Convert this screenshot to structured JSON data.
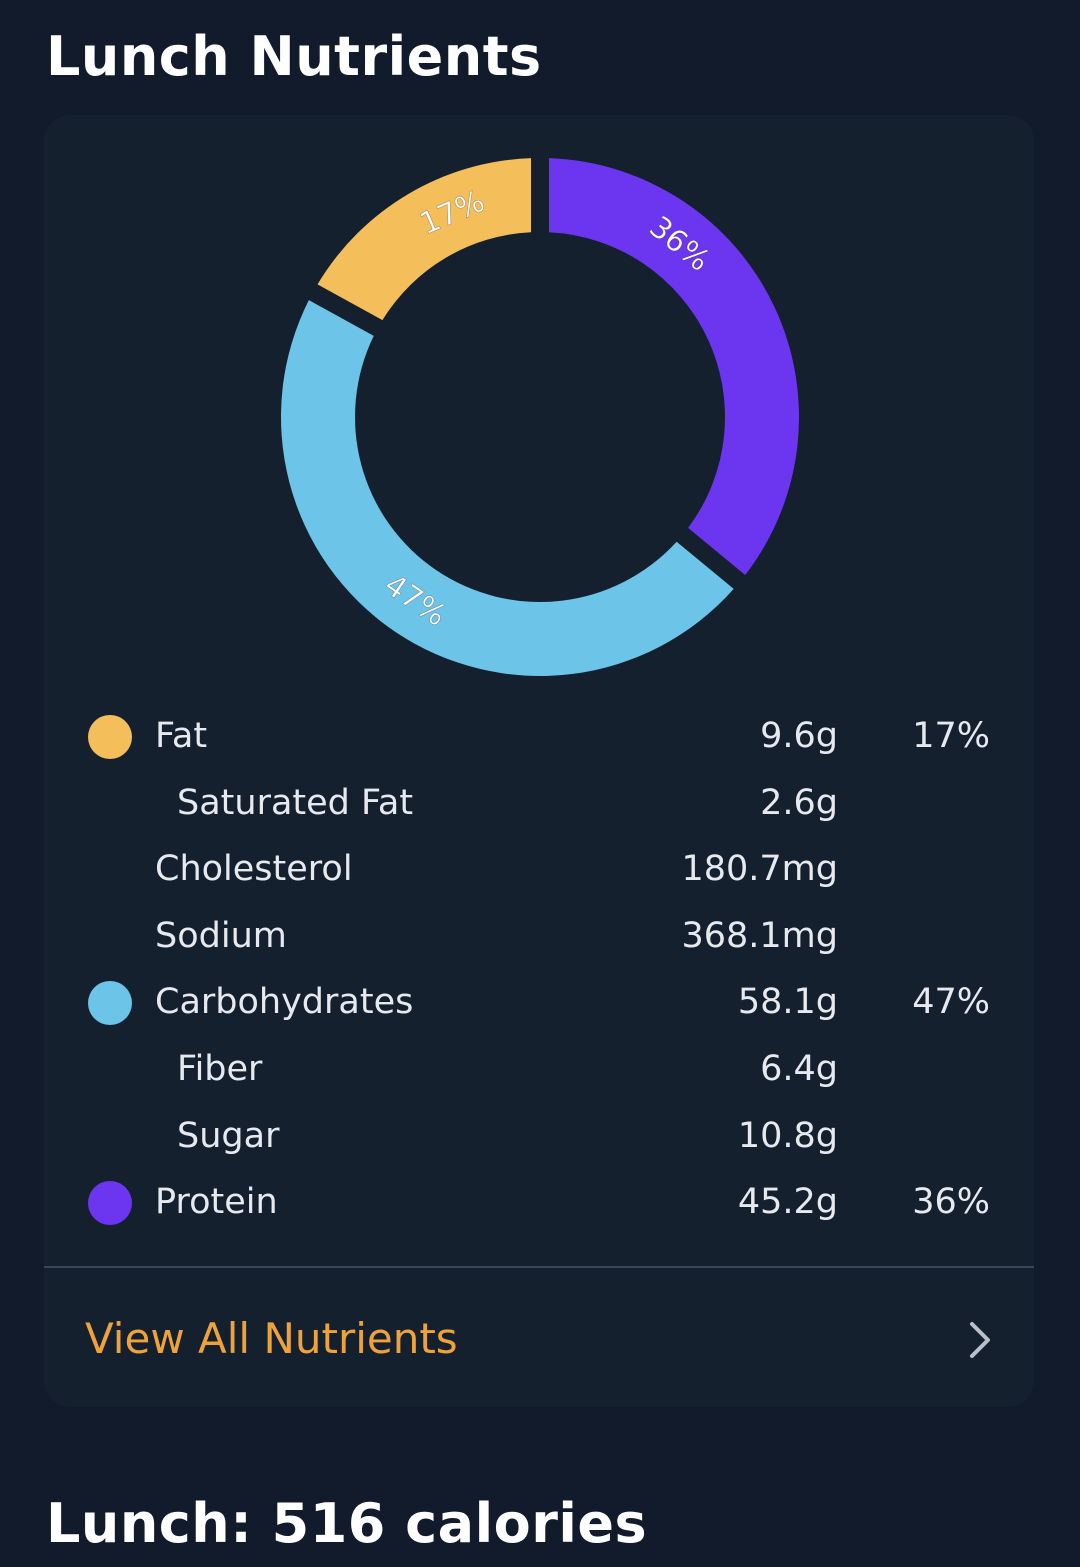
{
  "header": {
    "title": "Lunch Nutrients"
  },
  "colors": {
    "fat": "#f4be5a",
    "carbohydrates": "#6cc4e8",
    "protein": "#6c35f0",
    "accent": "#f0a23a"
  },
  "chart_data": {
    "type": "pie",
    "variant": "donut",
    "slices": [
      {
        "name": "Fat",
        "value": 17,
        "label": "17%",
        "color": "#f4be5a"
      },
      {
        "name": "Protein",
        "value": 36,
        "label": "36%",
        "color": "#6c35f0"
      },
      {
        "name": "Carbohydrates",
        "value": 47,
        "label": "47%",
        "color": "#6cc4e8"
      }
    ]
  },
  "nutrients": {
    "fat": {
      "label": "Fat",
      "amount": "9.6g",
      "percent": "17%"
    },
    "saturated_fat": {
      "label": "Saturated Fat",
      "amount": "2.6g"
    },
    "cholesterol": {
      "label": "Cholesterol",
      "amount": "180.7mg"
    },
    "sodium": {
      "label": "Sodium",
      "amount": "368.1mg"
    },
    "carbohydrates": {
      "label": "Carbohydrates",
      "amount": "58.1g",
      "percent": "47%"
    },
    "fiber": {
      "label": "Fiber",
      "amount": "6.4g"
    },
    "sugar": {
      "label": "Sugar",
      "amount": "10.8g"
    },
    "protein": {
      "label": "Protein",
      "amount": "45.2g",
      "percent": "36%"
    }
  },
  "footer_link": {
    "label": "View All Nutrients",
    "icon": "chevron-right-icon"
  },
  "summary": {
    "title": "Lunch: 516 calories"
  }
}
